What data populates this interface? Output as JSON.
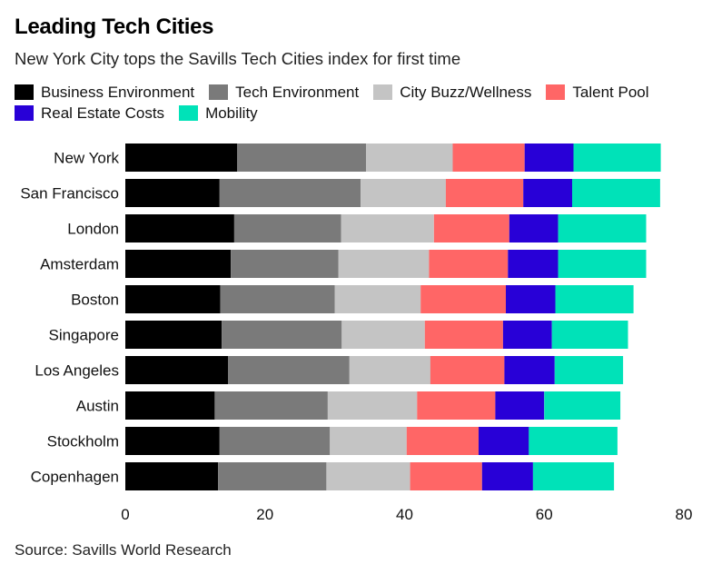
{
  "title": "Leading Tech Cities",
  "subtitle": "New York City tops the Savills Tech Cities index for first time",
  "source": "Source: Savills World Research",
  "chart_data": {
    "type": "bar",
    "orientation": "horizontal",
    "stacked": true,
    "categories": [
      "New York",
      "San Francisco",
      "London",
      "Amsterdam",
      "Boston",
      "Singapore",
      "Los Angeles",
      "Austin",
      "Stockholm",
      "Copenhagen"
    ],
    "series": [
      {
        "name": "Business Environment",
        "color": "#000000",
        "values": [
          16.0,
          13.5,
          15.6,
          15.1,
          13.6,
          13.8,
          14.7,
          12.8,
          13.5,
          13.3
        ]
      },
      {
        "name": "Tech Environment",
        "color": "#7a7a7a",
        "values": [
          18.5,
          20.2,
          15.3,
          15.4,
          16.4,
          17.2,
          17.4,
          16.2,
          15.8,
          15.5
        ]
      },
      {
        "name": "City Buzz/Wellness",
        "color": "#c4c4c4",
        "values": [
          12.4,
          12.2,
          13.3,
          13.0,
          12.3,
          11.9,
          11.6,
          12.8,
          11.0,
          12.0
        ]
      },
      {
        "name": "Talent Pool",
        "color": "#ff6666",
        "values": [
          10.3,
          11.1,
          10.8,
          11.3,
          12.2,
          11.2,
          10.6,
          11.2,
          10.3,
          10.3
        ]
      },
      {
        "name": "Real Estate Costs",
        "color": "#2800d7",
        "values": [
          7.0,
          7.0,
          7.0,
          7.2,
          7.1,
          7.0,
          7.2,
          7.0,
          7.2,
          7.3
        ]
      },
      {
        "name": "Mobility",
        "color": "#00e2b8",
        "values": [
          12.5,
          12.6,
          12.6,
          12.6,
          11.2,
          10.9,
          9.8,
          10.9,
          12.7,
          11.6
        ]
      }
    ],
    "xlim": [
      0,
      80
    ],
    "xticks": [
      "0",
      "20",
      "40",
      "60",
      "80"
    ],
    "xlabel": "",
    "ylabel": "",
    "grid": false,
    "legend_placement": "top-left"
  }
}
